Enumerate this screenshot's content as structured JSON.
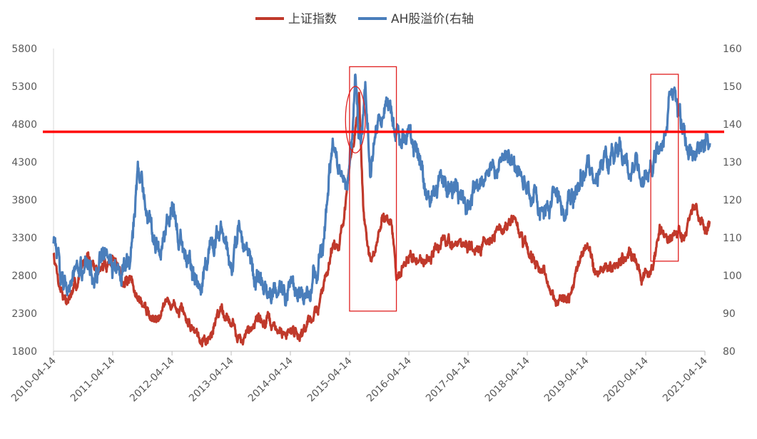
{
  "chart_data": {
    "type": "line",
    "title": "",
    "xlabel": "",
    "ylabel_left": "",
    "ylabel_right": "",
    "legend_position": "top-center",
    "grid": false,
    "x_ticks": [
      "2010-04-14",
      "2011-04-14",
      "2012-04-14",
      "2013-04-14",
      "2014-04-14",
      "2015-04-14",
      "2016-04-14",
      "2017-04-14",
      "2018-04-14",
      "2019-04-14",
      "2020-04-14",
      "2021-04-14"
    ],
    "ylim_left": [
      1800,
      5800
    ],
    "yticks_left": [
      1800,
      2300,
      2800,
      3300,
      3800,
      4300,
      4800,
      5300,
      5800
    ],
    "ylim_right": [
      80,
      160
    ],
    "yticks_right": [
      80,
      90,
      100,
      110,
      120,
      130,
      140,
      150,
      160
    ],
    "series": [
      {
        "name": "上证指数",
        "axis": "left",
        "color": "#c0392b",
        "points": [
          [
            "2010-04-14",
            3100
          ],
          [
            "2010-05-20",
            2700
          ],
          [
            "2010-07-05",
            2450
          ],
          [
            "2010-09-01",
            2650
          ],
          [
            "2010-11-08",
            3150
          ],
          [
            "2010-12-20",
            2850
          ],
          [
            "2011-02-15",
            2900
          ],
          [
            "2011-04-14",
            3050
          ],
          [
            "2011-06-20",
            2750
          ],
          [
            "2011-08-10",
            2650
          ],
          [
            "2011-10-20",
            2400
          ],
          [
            "2011-12-28",
            2200
          ],
          [
            "2012-02-20",
            2450
          ],
          [
            "2012-05-05",
            2400
          ],
          [
            "2012-07-10",
            2200
          ],
          [
            "2012-09-25",
            2050
          ],
          [
            "2012-12-03",
            1950
          ],
          [
            "2013-02-05",
            2400
          ],
          [
            "2013-04-14",
            2200
          ],
          [
            "2013-06-25",
            1900
          ],
          [
            "2013-09-12",
            2250
          ],
          [
            "2013-12-10",
            2150
          ],
          [
            "2014-03-10",
            2000
          ],
          [
            "2014-04-14",
            2100
          ],
          [
            "2014-06-20",
            2050
          ],
          [
            "2014-08-05",
            2200
          ],
          [
            "2014-10-10",
            2400
          ],
          [
            "2014-12-31",
            3250
          ],
          [
            "2015-02-10",
            3200
          ],
          [
            "2015-04-14",
            4150
          ],
          [
            "2015-06-12",
            5150
          ],
          [
            "2015-07-09",
            3600
          ],
          [
            "2015-08-26",
            2900
          ],
          [
            "2015-11-10",
            3600
          ],
          [
            "2015-12-30",
            3550
          ],
          [
            "2016-01-28",
            2700
          ],
          [
            "2016-04-14",
            3050
          ],
          [
            "2016-07-10",
            3000
          ],
          [
            "2016-11-20",
            3250
          ],
          [
            "2017-04-14",
            3200
          ],
          [
            "2017-05-10",
            3050
          ],
          [
            "2017-08-01",
            3300
          ],
          [
            "2017-11-15",
            3400
          ],
          [
            "2018-01-25",
            3550
          ],
          [
            "2018-03-20",
            3200
          ],
          [
            "2018-06-20",
            2900
          ],
          [
            "2018-08-20",
            2700
          ],
          [
            "2018-10-18",
            2450
          ],
          [
            "2019-01-03",
            2500
          ],
          [
            "2019-04-08",
            3250
          ],
          [
            "2019-06-10",
            2850
          ],
          [
            "2019-08-15",
            2900
          ],
          [
            "2019-10-20",
            2950
          ],
          [
            "2020-01-14",
            3100
          ],
          [
            "2020-03-23",
            2700
          ],
          [
            "2020-05-20",
            2900
          ],
          [
            "2020-07-09",
            3400
          ],
          [
            "2020-09-25",
            3250
          ],
          [
            "2020-12-10",
            3400
          ],
          [
            "2021-02-18",
            3700
          ],
          [
            "2021-04-14",
            3400
          ],
          [
            "2021-05-15",
            3500
          ]
        ]
      },
      {
        "name": "AH股溢价(右轴",
        "axis": "right",
        "color": "#4a7ebb",
        "points": [
          [
            "2010-04-14",
            110
          ],
          [
            "2010-06-01",
            100
          ],
          [
            "2010-08-01",
            99
          ],
          [
            "2010-10-01",
            101
          ],
          [
            "2010-12-01",
            102
          ],
          [
            "2011-02-01",
            103
          ],
          [
            "2011-04-14",
            103
          ],
          [
            "2011-06-01",
            100
          ],
          [
            "2011-08-01",
            103
          ],
          [
            "2011-09-20",
            130
          ],
          [
            "2011-11-01",
            119
          ],
          [
            "2011-12-20",
            112
          ],
          [
            "2012-02-01",
            107
          ],
          [
            "2012-04-14",
            119
          ],
          [
            "2012-06-01",
            110
          ],
          [
            "2012-08-01",
            104
          ],
          [
            "2012-10-01",
            97
          ],
          [
            "2012-12-01",
            107
          ],
          [
            "2013-02-01",
            110
          ],
          [
            "2013-04-14",
            102
          ],
          [
            "2013-06-01",
            112
          ],
          [
            "2013-08-01",
            103
          ],
          [
            "2013-10-01",
            99
          ],
          [
            "2013-12-01",
            95
          ],
          [
            "2014-02-01",
            97
          ],
          [
            "2014-04-14",
            97
          ],
          [
            "2014-06-01",
            93
          ],
          [
            "2014-08-01",
            96
          ],
          [
            "2014-10-01",
            102
          ],
          [
            "2014-11-15",
            112
          ],
          [
            "2014-12-31",
            134
          ],
          [
            "2015-02-20",
            125
          ],
          [
            "2015-04-14",
            126
          ],
          [
            "2015-05-20",
            150
          ],
          [
            "2015-06-20",
            132
          ],
          [
            "2015-07-20",
            148
          ],
          [
            "2015-08-20",
            124
          ],
          [
            "2015-10-01",
            140
          ],
          [
            "2015-12-01",
            147
          ],
          [
            "2016-01-15",
            138
          ],
          [
            "2016-04-14",
            138
          ],
          [
            "2016-06-20",
            130
          ],
          [
            "2016-08-20",
            120
          ],
          [
            "2016-10-20",
            126
          ],
          [
            "2016-12-20",
            123
          ],
          [
            "2017-02-15",
            121
          ],
          [
            "2017-04-14",
            118
          ],
          [
            "2017-06-20",
            124
          ],
          [
            "2017-08-20",
            130
          ],
          [
            "2017-10-20",
            128
          ],
          [
            "2017-12-20",
            131
          ],
          [
            "2018-03-05",
            126
          ],
          [
            "2018-05-01",
            122
          ],
          [
            "2018-07-01",
            118
          ],
          [
            "2018-08-20",
            115
          ],
          [
            "2018-10-01",
            122
          ],
          [
            "2018-12-01",
            118
          ],
          [
            "2019-02-01",
            122
          ],
          [
            "2019-04-14",
            130
          ],
          [
            "2019-06-01",
            126
          ],
          [
            "2019-08-01",
            130
          ],
          [
            "2019-10-01",
            132
          ],
          [
            "2020-01-01",
            130
          ],
          [
            "2020-03-01",
            128
          ],
          [
            "2020-05-01",
            126
          ],
          [
            "2020-07-01",
            133
          ],
          [
            "2020-08-20",
            138
          ],
          [
            "2020-09-20",
            151
          ],
          [
            "2020-11-01",
            142
          ],
          [
            "2020-12-20",
            136
          ],
          [
            "2021-02-01",
            133
          ],
          [
            "2021-04-14",
            136
          ],
          [
            "2021-05-15",
            135
          ]
        ]
      }
    ],
    "reference_line": {
      "axis": "left",
      "value": 4700,
      "color": "#ff0000"
    },
    "annotations": [
      {
        "shape": "rectangle",
        "x_range": [
          "2015-04-14",
          "2016-01-28"
        ],
        "y_range_left": [
          2330,
          5560
        ],
        "color": "#e02020"
      },
      {
        "shape": "ellipse",
        "x_range": [
          "2015-03-20",
          "2015-07-20"
        ],
        "y_range_left": [
          4420,
          5300
        ],
        "color": "#e02020"
      },
      {
        "shape": "rectangle",
        "x_range": [
          "2020-05-15",
          "2020-11-01"
        ],
        "y_range_left": [
          2990,
          5460
        ],
        "color": "#e02020"
      }
    ]
  }
}
